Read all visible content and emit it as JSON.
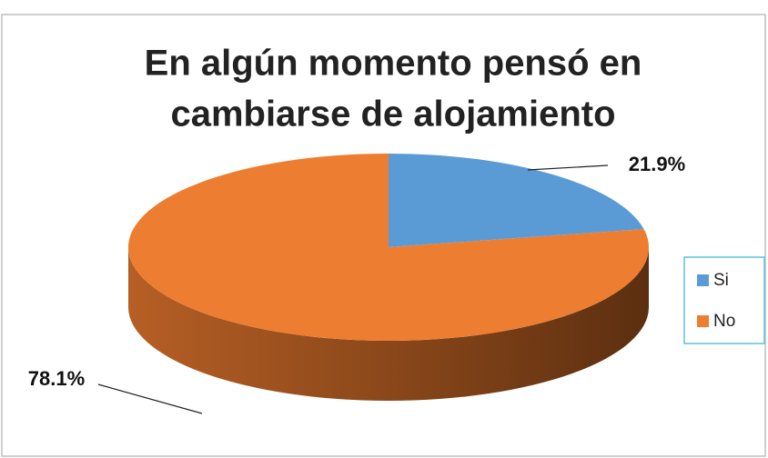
{
  "chart_data": {
    "type": "pie",
    "title": [
      "En algún momento pensó en",
      "cambiarse de alojamiento"
    ],
    "categories": [
      "Si",
      "No"
    ],
    "values": [
      21.9,
      78.1
    ],
    "value_labels": [
      "21.9%",
      "78.1%"
    ],
    "colors": [
      "#5b9bd5",
      "#ed7d31"
    ],
    "legend": "right"
  }
}
